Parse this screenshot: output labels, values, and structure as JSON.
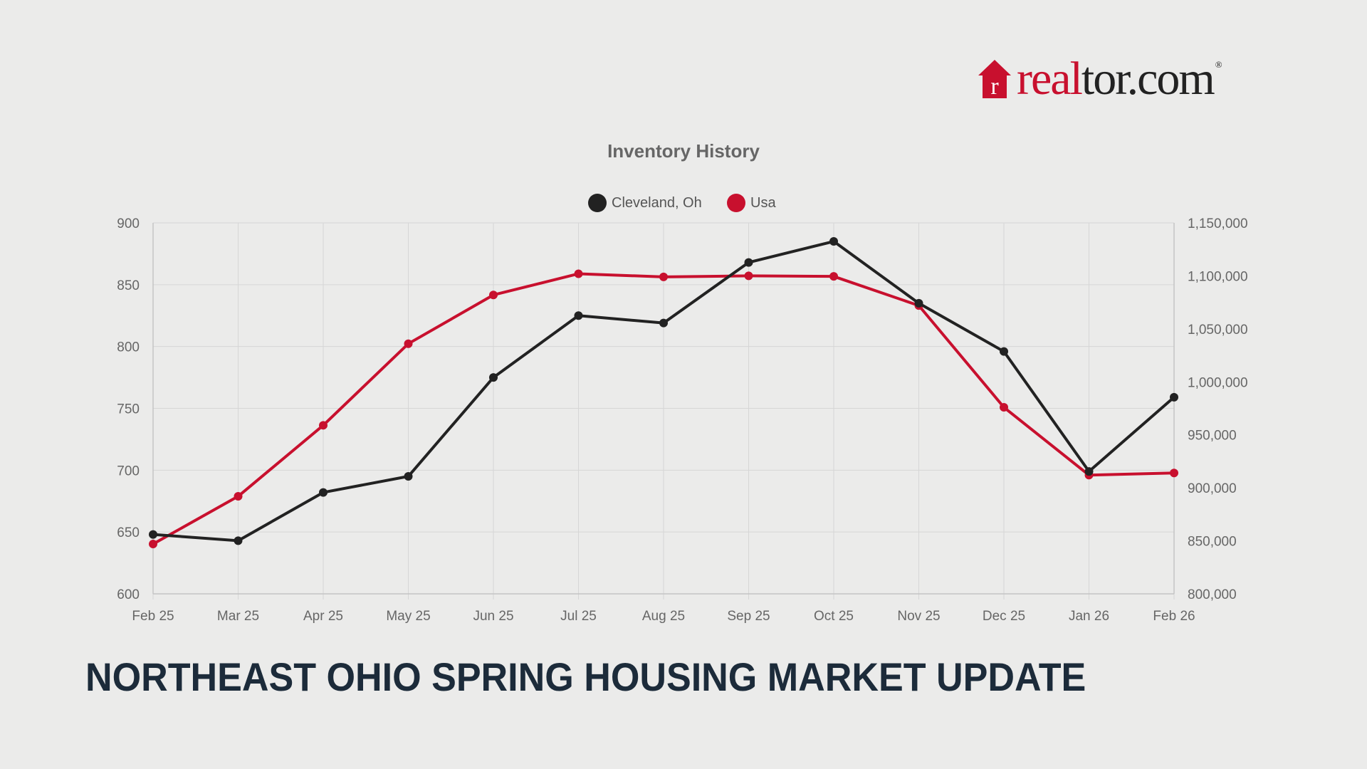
{
  "brand": {
    "logo_text_red": "real",
    "logo_text_dark": "tor.com",
    "registered_mark": "®",
    "colors": {
      "red": "#c8102e",
      "dark": "#222222"
    }
  },
  "headline": "NORTHEAST OHIO SPRING HOUSING MARKET UPDATE",
  "chart_data": {
    "type": "line",
    "title": "Inventory History",
    "categories": [
      "Feb 25",
      "Mar 25",
      "Apr 25",
      "May 25",
      "Jun 25",
      "Jul 25",
      "Aug 25",
      "Sep 25",
      "Oct 25",
      "Nov 25",
      "Dec 25",
      "Jan 26",
      "Feb 26"
    ],
    "series": [
      {
        "name": "Cleveland, Oh",
        "axis": "left",
        "color": "#222222",
        "values": [
          648,
          643,
          682,
          695,
          775,
          825,
          819,
          868,
          885,
          835,
          796,
          699,
          759
        ]
      },
      {
        "name": "Usa",
        "axis": "right",
        "color": "#c8102e",
        "values": [
          847000,
          892000,
          959000,
          1036000,
          1082000,
          1102000,
          1099000,
          1100000,
          1099500,
          1072000,
          976000,
          912000,
          914000
        ]
      }
    ],
    "y_left": {
      "min": 600,
      "max": 900,
      "ticks": [
        "900",
        "850",
        "800",
        "750",
        "700",
        "650",
        "600"
      ]
    },
    "y_right": {
      "min": 800000,
      "max": 1150000,
      "ticks": [
        "1,150,000",
        "1,100,000",
        "1,050,000",
        "1,000,000",
        "950,000",
        "900,000",
        "850,000",
        "800,000"
      ]
    },
    "legend_position": "top-center",
    "grid": true
  }
}
